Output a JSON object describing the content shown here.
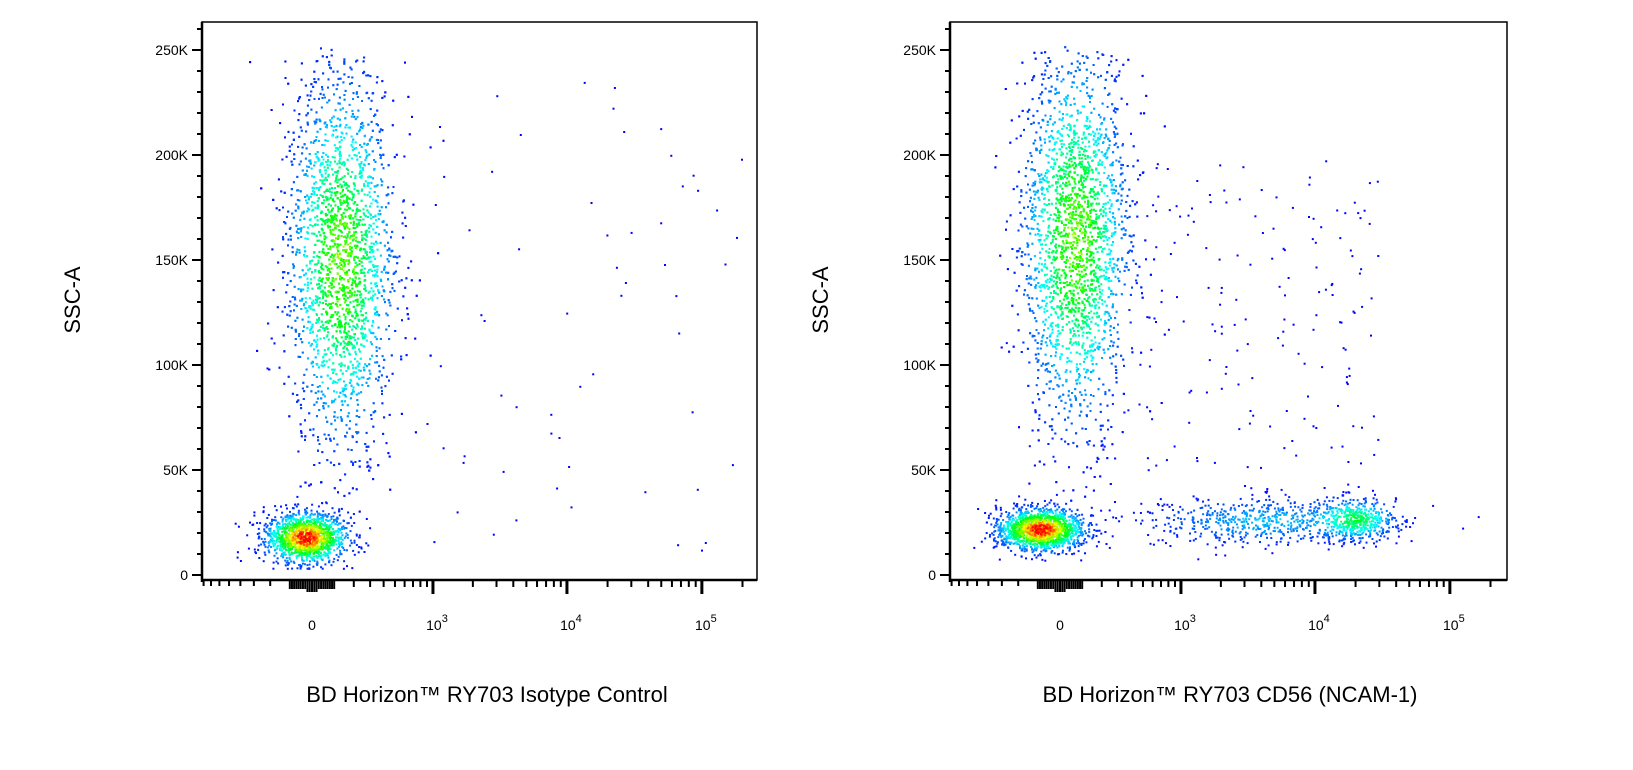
{
  "chart_data": [
    {
      "type": "scatter",
      "subtype": "flow-cytometry density dot plot",
      "xlabel": "BD Horizon™ RY703 Isotype Control",
      "ylabel": "SSC-A",
      "x_scale": "biexponential",
      "x_tick_labels": [
        "0",
        "10^3",
        "10^4",
        "10^5"
      ],
      "x_ticks": [
        0,
        1000,
        10000,
        100000
      ],
      "y_tick_labels": [
        "0",
        "50K",
        "100K",
        "150K",
        "200K",
        "250K"
      ],
      "y_ticks": [
        0,
        50000,
        100000,
        150000,
        200000,
        250000
      ],
      "ylim": [
        0,
        262000
      ],
      "colormap": [
        "#0000ff",
        "#00ffff",
        "#00ff00",
        "#ffff00",
        "#ff0000"
      ],
      "populations": [
        {
          "x_center": -30,
          "y_center": 18000,
          "sd_x_decades": 0.15,
          "sd_y": 6000,
          "count": 1500,
          "peak_density": 1.0
        },
        {
          "x_center": 130,
          "y_center": 150000,
          "sd_x_decades": 0.2,
          "sd_y": 45000,
          "count": 4500,
          "peak_density": 0.62
        },
        {
          "x_range": [
            1000,
            200000
          ],
          "y_range": [
            10000,
            240000
          ],
          "count": 60,
          "peak_density": 0.0
        }
      ]
    },
    {
      "type": "scatter",
      "subtype": "flow-cytometry density dot plot",
      "xlabel": "BD Horizon™ RY703 CD56 (NCAM-1)",
      "ylabel": "SSC-A",
      "x_scale": "biexponential",
      "x_tick_labels": [
        "0",
        "10^3",
        "10^4",
        "10^5"
      ],
      "x_ticks": [
        0,
        1000,
        10000,
        100000
      ],
      "y_tick_labels": [
        "0",
        "50K",
        "100K",
        "150K",
        "200K",
        "250K"
      ],
      "y_ticks": [
        0,
        50000,
        100000,
        150000,
        200000,
        250000
      ],
      "ylim": [
        0,
        262000
      ],
      "colormap": [
        "#0000ff",
        "#00ffff",
        "#00ff00",
        "#ffff00",
        "#ff0000"
      ],
      "populations": [
        {
          "x_center": -90,
          "y_center": 22000,
          "sd_x_decades": 0.16,
          "sd_y": 5000,
          "count": 1600,
          "peak_density": 1.0
        },
        {
          "x_center": 65,
          "y_center": 160000,
          "sd_x_decades": 0.2,
          "sd_y": 45000,
          "count": 4300,
          "peak_density": 0.62
        },
        {
          "x_center": 4000,
          "y_center": 26000,
          "sd_x_decades": 0.45,
          "sd_y": 6000,
          "count": 600,
          "peak_density": 0.2
        },
        {
          "x_center": 20000,
          "y_center": 27000,
          "sd_x_decades": 0.15,
          "sd_y": 5000,
          "count": 450,
          "peak_density": 0.4
        },
        {
          "x_range": [
            500,
            30000
          ],
          "y_range": [
            50000,
            200000
          ],
          "count": 160,
          "peak_density": 0.0
        }
      ]
    }
  ]
}
